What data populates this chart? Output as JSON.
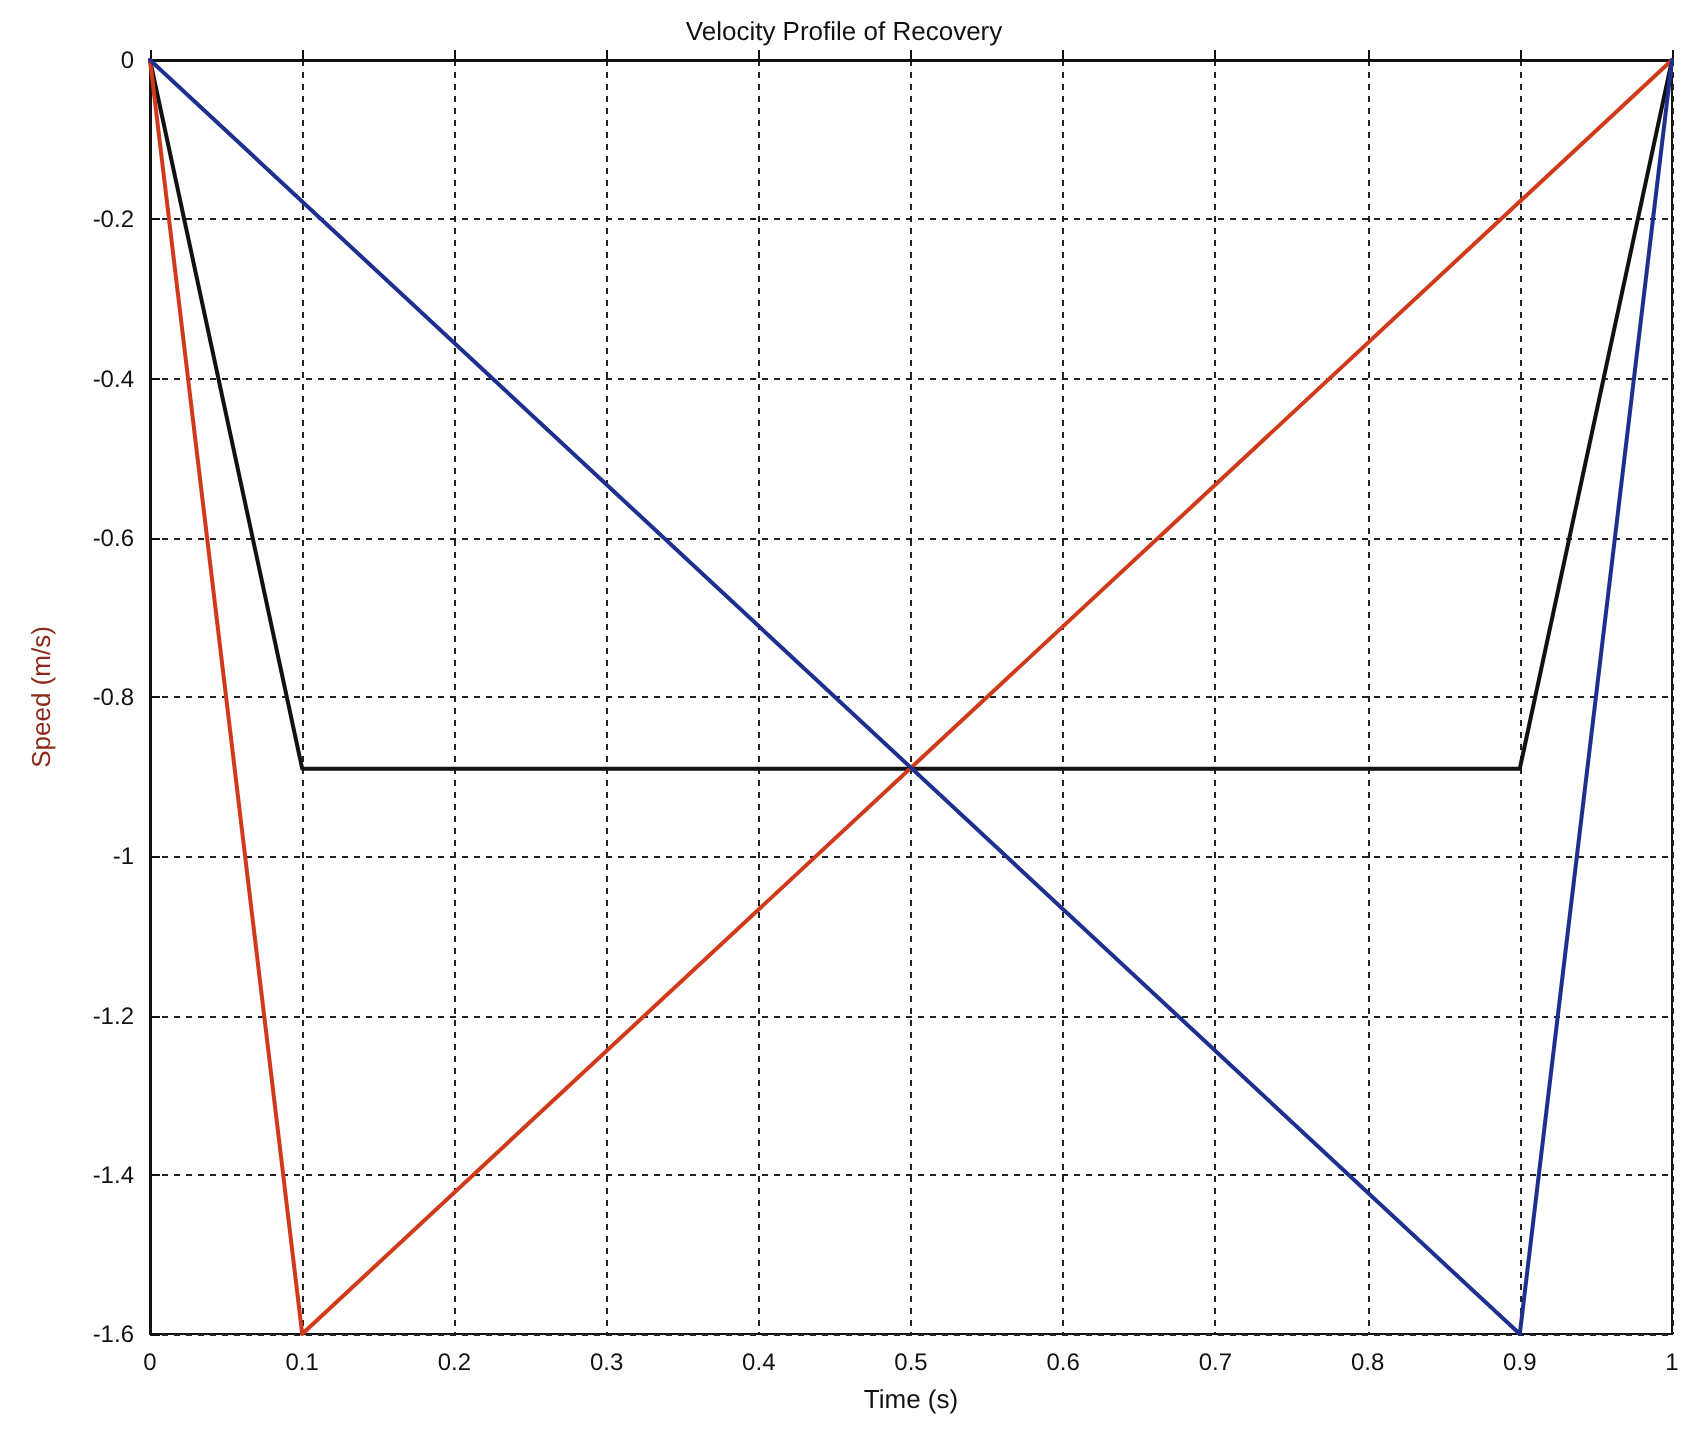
{
  "chart_data": {
    "type": "line",
    "title": "Velocity Profile of Recovery",
    "xlabel": "Time (s)",
    "ylabel": "Speed (m/s)",
    "series": [
      {
        "color": "#111111",
        "x": [
          0,
          0.1,
          0.9,
          1
        ],
        "values": [
          0,
          -0.89,
          -0.89,
          0
        ]
      },
      {
        "color": "#d03a1a",
        "x": [
          0,
          0.1,
          1
        ],
        "values": [
          0,
          -1.6,
          0
        ]
      },
      {
        "color": "#1f2f8f",
        "x": [
          0,
          0.9,
          1
        ],
        "values": [
          0,
          -1.6,
          0
        ]
      }
    ],
    "xlim": [
      0,
      1
    ],
    "xticks": [
      0,
      0.1,
      0.2,
      0.3,
      0.4,
      0.5,
      0.6,
      0.7,
      0.8,
      0.9,
      1
    ],
    "ylim": [
      -1.6,
      0
    ],
    "yticks": [
      -1.6,
      -1.4,
      -1.2,
      -1,
      -0.8,
      -0.6,
      -0.4,
      -0.2,
      0
    ],
    "grid": true,
    "marker": "none",
    "line_style": "solid"
  }
}
